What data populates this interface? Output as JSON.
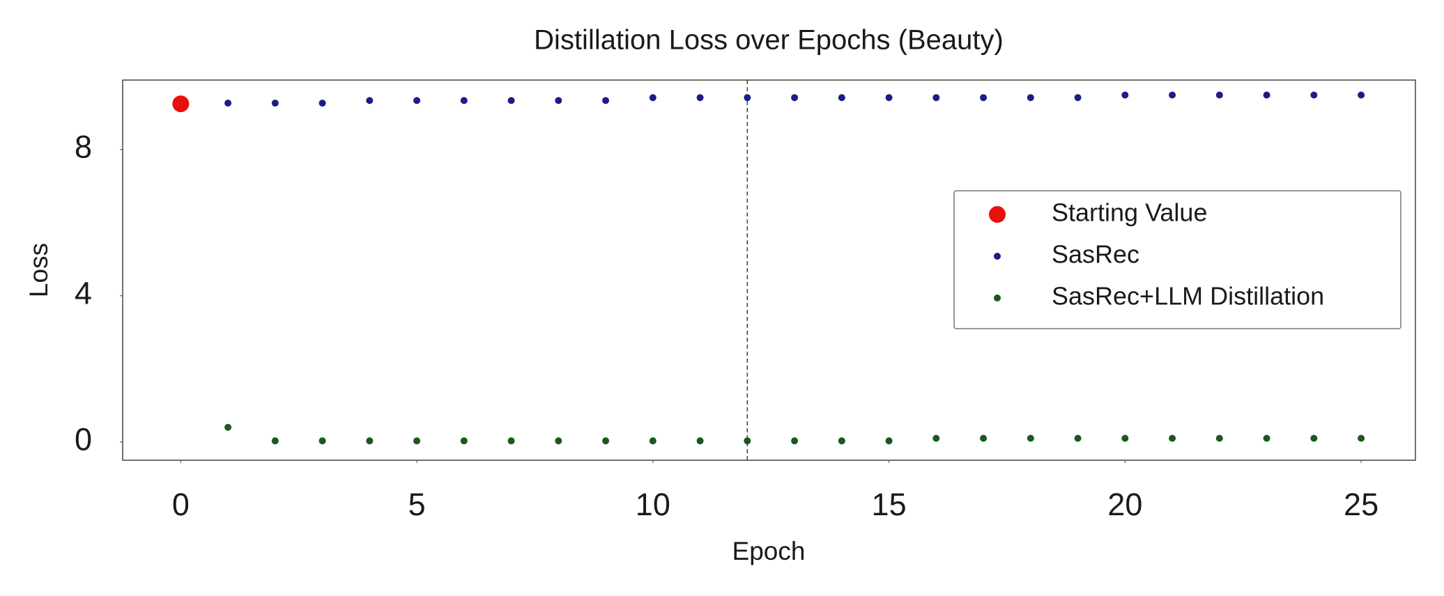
{
  "chart_data": {
    "type": "scatter",
    "title": "Distillation Loss over Epochs (Beauty)",
    "x_label": "Epoch",
    "y_label": "Loss",
    "xlim": [
      -1.23,
      26.15
    ],
    "xticks": [
      0,
      5,
      10,
      15,
      20,
      25
    ],
    "ylim": [
      -0.5,
      9.9
    ],
    "yticks": [
      0,
      4,
      8
    ],
    "vline": 12,
    "grid": false,
    "legend": "center right",
    "series": [
      {
        "name": "Starting Value",
        "color": "#e8100c",
        "marker_size": 12,
        "x": [
          0
        ],
        "values": [
          9.25
        ]
      },
      {
        "name": "SasRec",
        "color": "#1c1c8a",
        "marker_size": 5,
        "x": [
          1,
          2,
          3,
          4,
          5,
          6,
          7,
          8,
          9,
          10,
          11,
          12,
          13,
          14,
          15,
          16,
          17,
          18,
          19,
          20,
          21,
          22,
          23,
          24,
          25
        ],
        "values": [
          9.27,
          9.27,
          9.27,
          9.34,
          9.34,
          9.34,
          9.34,
          9.34,
          9.34,
          9.42,
          9.42,
          9.42,
          9.42,
          9.42,
          9.42,
          9.42,
          9.42,
          9.42,
          9.42,
          9.49,
          9.49,
          9.49,
          9.49,
          9.49,
          9.49
        ]
      },
      {
        "name": "SasRec+LLM Distillation",
        "color": "#1a5a1a",
        "marker_size": 5,
        "x": [
          1,
          2,
          3,
          4,
          5,
          6,
          7,
          8,
          9,
          10,
          11,
          12,
          13,
          14,
          15,
          16,
          17,
          18,
          19,
          20,
          21,
          22,
          23,
          24,
          25
        ],
        "values": [
          0.4,
          0.03,
          0.03,
          0.03,
          0.03,
          0.03,
          0.03,
          0.03,
          0.03,
          0.03,
          0.03,
          0.03,
          0.03,
          0.03,
          0.03,
          0.1,
          0.1,
          0.1,
          0.1,
          0.1,
          0.1,
          0.1,
          0.1,
          0.1,
          0.1
        ]
      }
    ]
  }
}
